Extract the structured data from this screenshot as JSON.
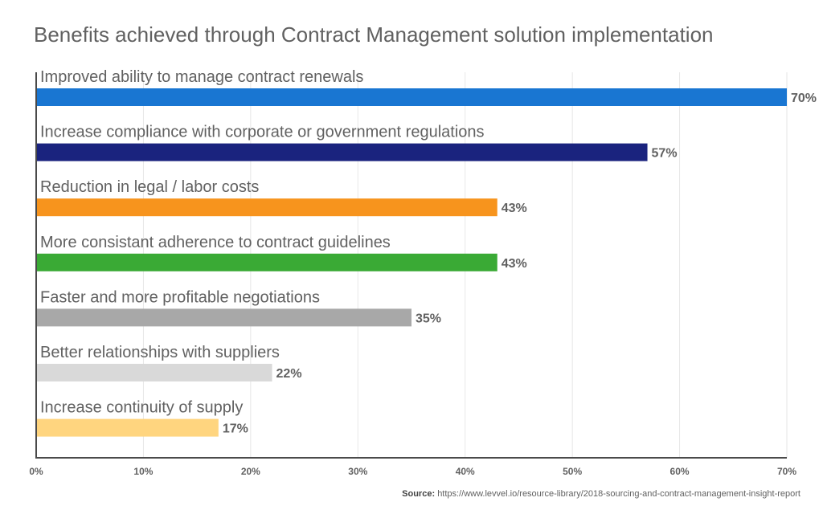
{
  "chart_data": {
    "type": "bar",
    "orientation": "horizontal",
    "title": "Benefits achieved through Contract Management solution implementation",
    "categories": [
      "Improved ability to manage contract renewals",
      "Increase compliance with corporate or government regulations",
      "Reduction in legal / labor costs",
      "More consistant adherence to contract guidelines",
      "Faster and more profitable negotiations",
      "Better relationships with suppliers",
      "Increase continuity of supply"
    ],
    "values": [
      70,
      57,
      43,
      43,
      35,
      22,
      17
    ],
    "value_labels": [
      "70%",
      "57%",
      "43%",
      "43%",
      "35%",
      "22%",
      "17%"
    ],
    "colors": [
      "#1976d2",
      "#1a237e",
      "#f7941d",
      "#3aaa35",
      "#a8a8a8",
      "#d9d9d9",
      "#ffd57f"
    ],
    "xlim": [
      0,
      70
    ],
    "x_ticks": [
      0,
      10,
      20,
      30,
      40,
      50,
      60,
      70
    ],
    "x_tick_labels": [
      "0%",
      "10%",
      "20%",
      "30%",
      "40%",
      "50%",
      "60%",
      "70%"
    ],
    "grid": true
  },
  "source": {
    "label": "Source:",
    "text": "https://www.levvel.io/resource-library/2018-sourcing-and-contract-management-insight-report"
  }
}
